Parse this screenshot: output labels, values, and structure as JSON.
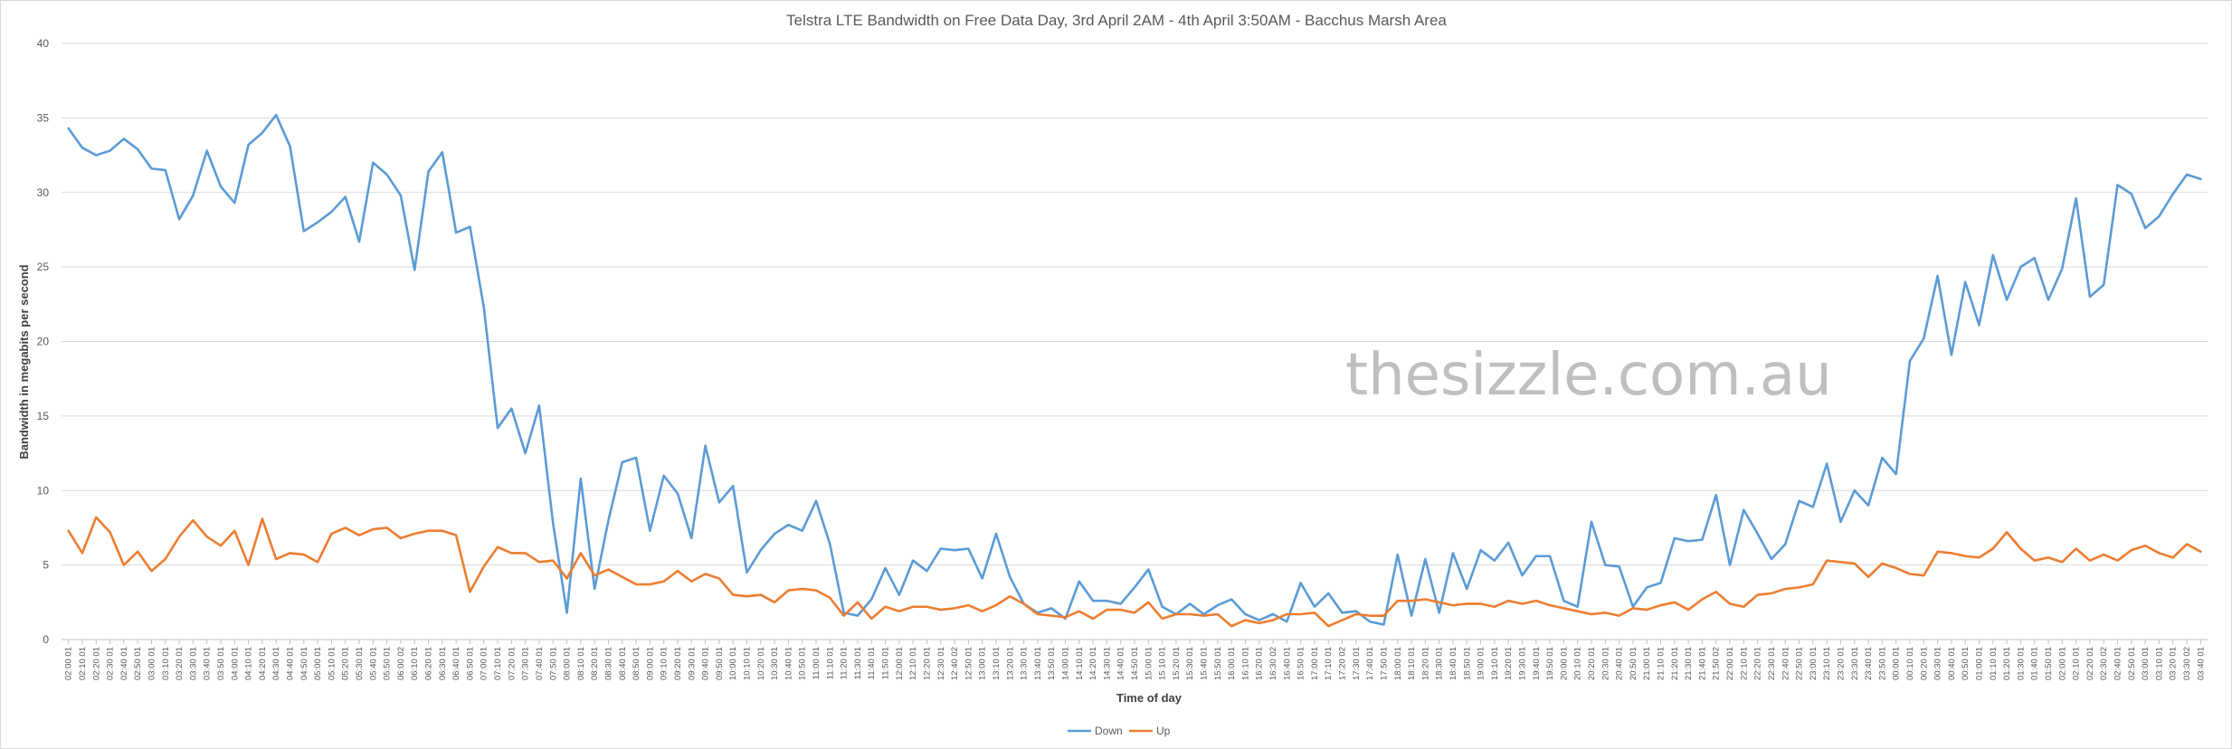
{
  "chart_data": {
    "type": "line",
    "title": "Telstra LTE Bandwidth on Free Data Day, 3rd April 2AM - 4th April 3:50AM - Bacchus Marsh Area",
    "xlabel": "Time of day",
    "ylabel": "Bandwidth in megabits per second",
    "ylim": [
      0,
      40
    ],
    "yticks": [
      "0",
      "5",
      "10",
      "15",
      "20",
      "25",
      "30",
      "35",
      "40"
    ],
    "grid": true,
    "legend_position": "bottom",
    "watermark": "thesizzle.com.au",
    "x": [
      "02:00 01",
      "02:10 01",
      "02:20 01",
      "02:30 01",
      "02:40 01",
      "02:50 01",
      "03:00 01",
      "03:10 01",
      "03:20 01",
      "03:30 01",
      "03:40 01",
      "03:50 01",
      "04:00 01",
      "04:10 01",
      "04:20 01",
      "04:30 01",
      "04:40 01",
      "04:50 01",
      "05:00 01",
      "05:10 01",
      "05:20 01",
      "05:30 01",
      "05:40 01",
      "05:50 01",
      "06:00 02",
      "06:10 01",
      "06:20 01",
      "06:30 01",
      "06:40 01",
      "06:50 01",
      "07:00 01",
      "07:10 01",
      "07:20 01",
      "07:30 01",
      "07:40 01",
      "07:50 01",
      "08:00 01",
      "08:10 01",
      "08:20 01",
      "08:30 01",
      "08:40 01",
      "08:50 01",
      "09:00 01",
      "09:10 01",
      "09:20 01",
      "09:30 01",
      "09:40 01",
      "09:50 01",
      "10:00 01",
      "10:10 01",
      "10:20 01",
      "10:30 01",
      "10:40 01",
      "10:50 01",
      "11:00 01",
      "11:10 01",
      "11:20 01",
      "11:30 01",
      "11:40 01",
      "11:50 01",
      "12:00 01",
      "12:10 01",
      "12:20 01",
      "12:30 01",
      "12:40 02",
      "12:50 01",
      "13:00 01",
      "13:10 01",
      "13:20 01",
      "13:30 01",
      "13:40 01",
      "13:50 01",
      "14:00 01",
      "14:10 01",
      "14:20 01",
      "14:30 01",
      "14:40 01",
      "14:50 01",
      "15:00 01",
      "15:10 01",
      "15:20 01",
      "15:30 01",
      "15:40 01",
      "15:50 01",
      "16:00 01",
      "16:10 01",
      "16:20 01",
      "16:30 02",
      "16:40 01",
      "16:50 01",
      "17:00 01",
      "17:10 01",
      "17:20 02",
      "17:30 01",
      "17:40 01",
      "17:50 01",
      "18:00 01",
      "18:10 01",
      "18:20 01",
      "18:30 01",
      "18:40 01",
      "18:50 01",
      "19:00 01",
      "19:10 01",
      "19:20 01",
      "19:30 01",
      "19:40 01",
      "19:50 01",
      "20:00 01",
      "20:10 01",
      "20:20 01",
      "20:30 01",
      "20:40 01",
      "20:50 01",
      "21:00 01",
      "21:10 01",
      "21:20 01",
      "21:30 01",
      "21:40 01",
      "21:50 02",
      "22:00 01",
      "22:10 01",
      "22:20 01",
      "22:30 01",
      "22:40 01",
      "22:50 01",
      "23:00 01",
      "23:10 01",
      "23:20 01",
      "23:30 01",
      "23:40 01",
      "23:50 01",
      "00:00 01",
      "00:10 01",
      "00:20 01",
      "00:30 01",
      "00:40 01",
      "00:50 01",
      "01:00 01",
      "01:10 01",
      "01:20 01",
      "01:30 01",
      "01:40 01",
      "01:50 01",
      "02:00 01",
      "02:10 01",
      "02:20 01",
      "02:30 02",
      "02:40 01",
      "02:50 01",
      "03:00 01",
      "03:10 01",
      "03:20 01",
      "03:30 02",
      "03:40 01"
    ],
    "series": [
      {
        "name": "Down",
        "color": "#5b9bd5",
        "values": [
          34.3,
          33.0,
          32.5,
          32.8,
          33.6,
          32.9,
          31.6,
          31.5,
          28.2,
          29.8,
          32.8,
          30.4,
          29.3,
          33.2,
          34.0,
          35.2,
          33.1,
          27.4,
          28.0,
          28.7,
          29.7,
          26.7,
          32.0,
          31.2,
          29.8,
          24.8,
          31.4,
          32.7,
          27.3,
          27.7,
          22.3,
          14.2,
          15.5,
          12.5,
          15.7,
          7.8,
          1.8,
          10.8,
          3.4,
          8.0,
          11.9,
          12.2,
          7.3,
          11.0,
          9.8,
          6.8,
          13.0,
          9.2,
          10.3,
          4.5,
          6.0,
          7.1,
          7.7,
          7.3,
          9.3,
          6.4,
          1.8,
          1.6,
          2.7,
          4.8,
          3.0,
          5.3,
          4.6,
          6.1,
          6.0,
          6.1,
          4.1,
          7.1,
          4.2,
          2.4,
          1.8,
          2.1,
          1.4,
          3.9,
          2.6,
          2.6,
          2.4,
          3.5,
          4.7,
          2.2,
          1.7,
          2.4,
          1.7,
          2.3,
          2.7,
          1.7,
          1.3,
          1.7,
          1.2,
          3.8,
          2.2,
          3.1,
          1.8,
          1.9,
          1.2,
          1.0,
          5.7,
          1.6,
          5.4,
          1.8,
          5.8,
          3.4,
          6.0,
          5.3,
          6.5,
          4.3,
          5.6,
          5.6,
          2.6,
          2.2,
          7.9,
          5.0,
          4.9,
          2.2,
          3.5,
          3.8,
          6.8,
          6.6,
          6.7,
          9.7,
          5.0,
          8.7,
          7.1,
          5.4,
          6.4,
          9.3,
          8.9,
          11.8,
          7.9,
          10.0,
          9.0,
          12.2,
          11.1,
          18.7,
          20.2,
          24.4,
          19.1,
          24.0,
          21.1,
          25.8,
          22.8,
          25.0,
          25.6,
          22.8,
          24.9,
          29.6,
          23.0,
          23.8,
          30.5,
          29.9,
          27.6,
          28.4,
          29.9,
          31.2,
          30.9
        ]
      },
      {
        "name": "Up",
        "color": "#ed7d31",
        "values": [
          7.3,
          5.8,
          8.2,
          7.2,
          5.0,
          5.9,
          4.6,
          5.4,
          6.9,
          8.0,
          6.9,
          6.3,
          7.3,
          5.0,
          8.1,
          5.4,
          5.8,
          5.7,
          5.2,
          7.1,
          7.5,
          7.0,
          7.4,
          7.5,
          6.8,
          7.1,
          7.3,
          7.3,
          7.0,
          3.2,
          4.9,
          6.2,
          5.8,
          5.8,
          5.2,
          5.3,
          4.1,
          5.8,
          4.3,
          4.7,
          4.2,
          3.7,
          3.7,
          3.9,
          4.6,
          3.9,
          4.4,
          4.1,
          3.0,
          2.9,
          3.0,
          2.5,
          3.3,
          3.4,
          3.3,
          2.8,
          1.6,
          2.5,
          1.4,
          2.2,
          1.9,
          2.2,
          2.2,
          2.0,
          2.1,
          2.3,
          1.9,
          2.3,
          2.9,
          2.4,
          1.7,
          1.6,
          1.5,
          1.9,
          1.4,
          2.0,
          2.0,
          1.8,
          2.5,
          1.4,
          1.7,
          1.7,
          1.6,
          1.7,
          0.9,
          1.3,
          1.1,
          1.3,
          1.7,
          1.7,
          1.8,
          0.9,
          1.3,
          1.7,
          1.6,
          1.6,
          2.6,
          2.6,
          2.7,
          2.5,
          2.3,
          2.4,
          2.4,
          2.2,
          2.6,
          2.4,
          2.6,
          2.3,
          2.1,
          1.9,
          1.7,
          1.8,
          1.6,
          2.1,
          2.0,
          2.3,
          2.5,
          2.0,
          2.7,
          3.2,
          2.4,
          2.2,
          3.0,
          3.1,
          3.4,
          3.5,
          3.7,
          5.3,
          5.2,
          5.1,
          4.2,
          5.1,
          4.8,
          4.4,
          4.3,
          5.9,
          5.8,
          5.6,
          5.5,
          6.1,
          7.2,
          6.1,
          5.3,
          5.5,
          5.2,
          6.1,
          5.3,
          5.7,
          5.3,
          6.0,
          6.3,
          5.8,
          5.5,
          6.4,
          5.9
        ]
      }
    ]
  }
}
